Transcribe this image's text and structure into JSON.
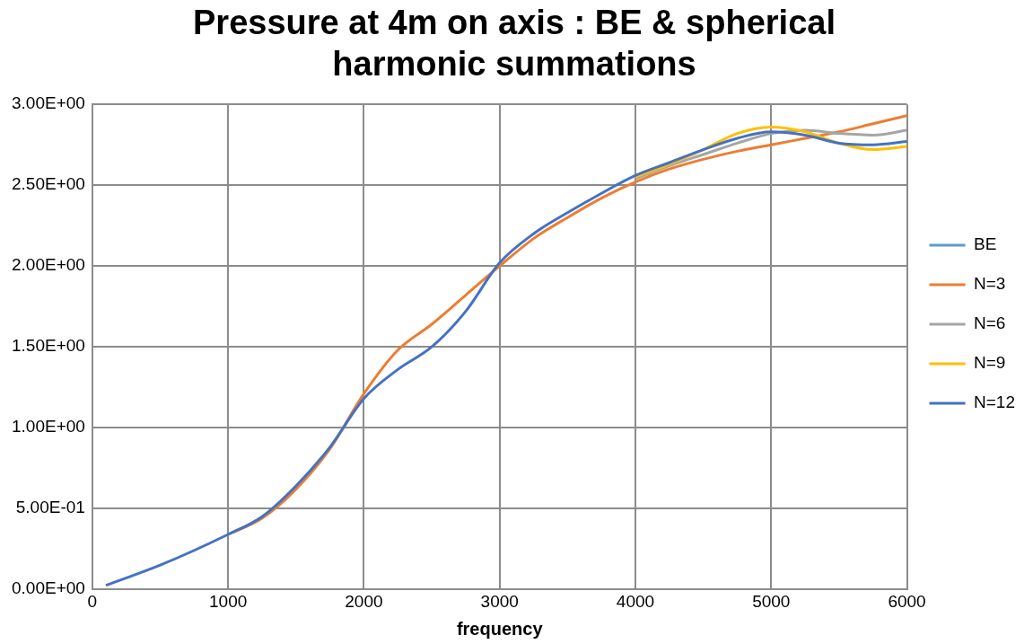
{
  "chart_data": {
    "type": "line",
    "title": "Pressure at 4m on axis : BE & spherical harmonic summations",
    "xlabel": "frequency",
    "x": [
      100,
      500,
      1000,
      1250,
      1500,
      1750,
      2000,
      2250,
      2500,
      2750,
      3000,
      3250,
      3500,
      3750,
      4000,
      4250,
      4500,
      4750,
      5000,
      5250,
      5500,
      5750,
      6000
    ],
    "series": [
      {
        "name": "BE",
        "color": "#5b9bd5",
        "values": [
          null,
          null,
          null,
          null,
          null,
          null,
          null,
          null,
          null,
          null,
          null,
          null,
          null,
          null,
          null,
          null,
          null,
          null,
          null,
          null,
          null,
          null,
          null
        ]
      },
      {
        "name": "N=3",
        "color": "#ed7d31",
        "values": [
          null,
          null,
          0.34,
          0.44,
          0.62,
          0.87,
          1.21,
          1.48,
          1.64,
          1.82,
          2.0,
          2.17,
          2.3,
          2.42,
          2.52,
          2.6,
          2.66,
          2.71,
          2.75,
          2.79,
          2.83,
          2.88,
          2.93
        ]
      },
      {
        "name": "N=6",
        "color": "#a5a5a5",
        "values": [
          null,
          null,
          null,
          null,
          null,
          null,
          null,
          null,
          null,
          null,
          null,
          null,
          null,
          null,
          2.54,
          2.62,
          2.69,
          2.76,
          2.82,
          2.84,
          2.82,
          2.81,
          2.84
        ]
      },
      {
        "name": "N=9",
        "color": "#ffc000",
        "values": [
          null,
          null,
          null,
          null,
          null,
          null,
          null,
          null,
          null,
          null,
          null,
          null,
          null,
          null,
          2.55,
          2.63,
          2.72,
          2.82,
          2.86,
          2.83,
          2.76,
          2.72,
          2.74
        ]
      },
      {
        "name": "N=12",
        "color": "#4472c4",
        "values": [
          0.025,
          0.15,
          0.34,
          0.45,
          0.64,
          0.88,
          1.18,
          1.36,
          1.5,
          1.72,
          2.02,
          2.2,
          2.33,
          2.45,
          2.56,
          2.64,
          2.72,
          2.79,
          2.83,
          2.81,
          2.76,
          2.75,
          2.77
        ]
      }
    ],
    "xlim": [
      0,
      6000
    ],
    "xticks": [
      0,
      1000,
      2000,
      3000,
      4000,
      5000,
      6000
    ],
    "ylim": [
      0,
      3
    ],
    "yticks": [
      {
        "value": 0,
        "label": "0.00E+00"
      },
      {
        "value": 0.5,
        "label": "5.00E-01"
      },
      {
        "value": 1,
        "label": "1.00E+00"
      },
      {
        "value": 1.5,
        "label": "1.50E+00"
      },
      {
        "value": 2,
        "label": "2.00E+00"
      },
      {
        "value": 2.5,
        "label": "2.50E+00"
      },
      {
        "value": 3,
        "label": "3.00E+00"
      }
    ],
    "grid": true,
    "legend": "right",
    "marker": "none",
    "line_style": "solid"
  }
}
